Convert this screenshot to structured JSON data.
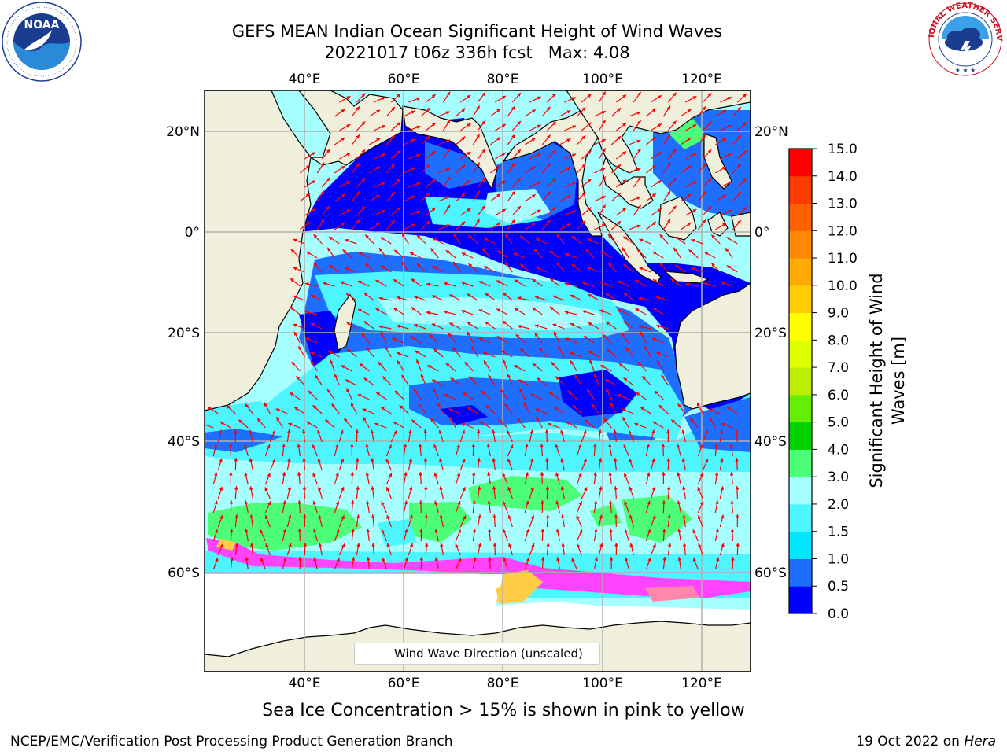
{
  "header": {
    "title_line1": "GEFS MEAN Indian Ocean Significant Height of Wind Waves",
    "title_line2": "20221017 t06z 336h fcst   Max: 4.08"
  },
  "logos": {
    "left": {
      "name": "noaa-logo",
      "text": "NOAA",
      "ring_text": "NATIONAL OCEANIC AND ATMOSPHERIC ADMINISTRATION · U.S. DEPARTMENT OF COMMERCE"
    },
    "right": {
      "name": "national-weather-service-logo",
      "ring_text": "NATIONAL WEATHER SERVICE"
    }
  },
  "map": {
    "lon_range": [
      20,
      130
    ],
    "lat_range": [
      -75,
      28
    ],
    "top_lon_labels": [
      "40°E",
      "60°E",
      "80°E",
      "100°E",
      "120°E"
    ],
    "bottom_lon_labels": [
      "40°E",
      "60°E",
      "80°E",
      "100°E",
      "120°E"
    ],
    "left_lat_labels": [
      "20°N",
      "0°",
      "20°S",
      "40°S",
      "60°S"
    ],
    "right_lat_labels": [
      "20°N",
      "0°",
      "20°S",
      "40°S",
      "60°S"
    ],
    "gridlines": true,
    "land_color": "#efefdc",
    "sea_ice_color": "#ff44ff",
    "arrow_color": "#ff0000",
    "legend_label": "Wind Wave Direction (unscaled)",
    "legend_location": "lower-center",
    "max_value": 4.08
  },
  "colorbar": {
    "title": "Significant Height of Wind Waves [m]",
    "tick_labels": [
      "0.0",
      "0.5",
      "1.0",
      "1.5",
      "2.0",
      "3.0",
      "4.0",
      "5.0",
      "6.0",
      "7.0",
      "8.0",
      "9.0",
      "10.0",
      "11.0",
      "12.0",
      "13.0",
      "14.0",
      "15.0"
    ],
    "colors": [
      "#0000ff",
      "#1e6eff",
      "#00e6ff",
      "#4df5ff",
      "#a6ffff",
      "#4dff78",
      "#00d200",
      "#66ee00",
      "#bbee00",
      "#ddff00",
      "#ffff00",
      "#ffcc00",
      "#ffaa00",
      "#ff8800",
      "#ff6000",
      "#ff3c00",
      "#ff0000"
    ]
  },
  "footer": {
    "note": "Sea Ice Concentration > 15% is shown in pink to yellow",
    "credit_left": "NCEP/EMC/Verification Post Processing Product Generation Branch",
    "credit_right_date": "19 Oct 2022 on",
    "credit_right_machine": "Hera"
  }
}
